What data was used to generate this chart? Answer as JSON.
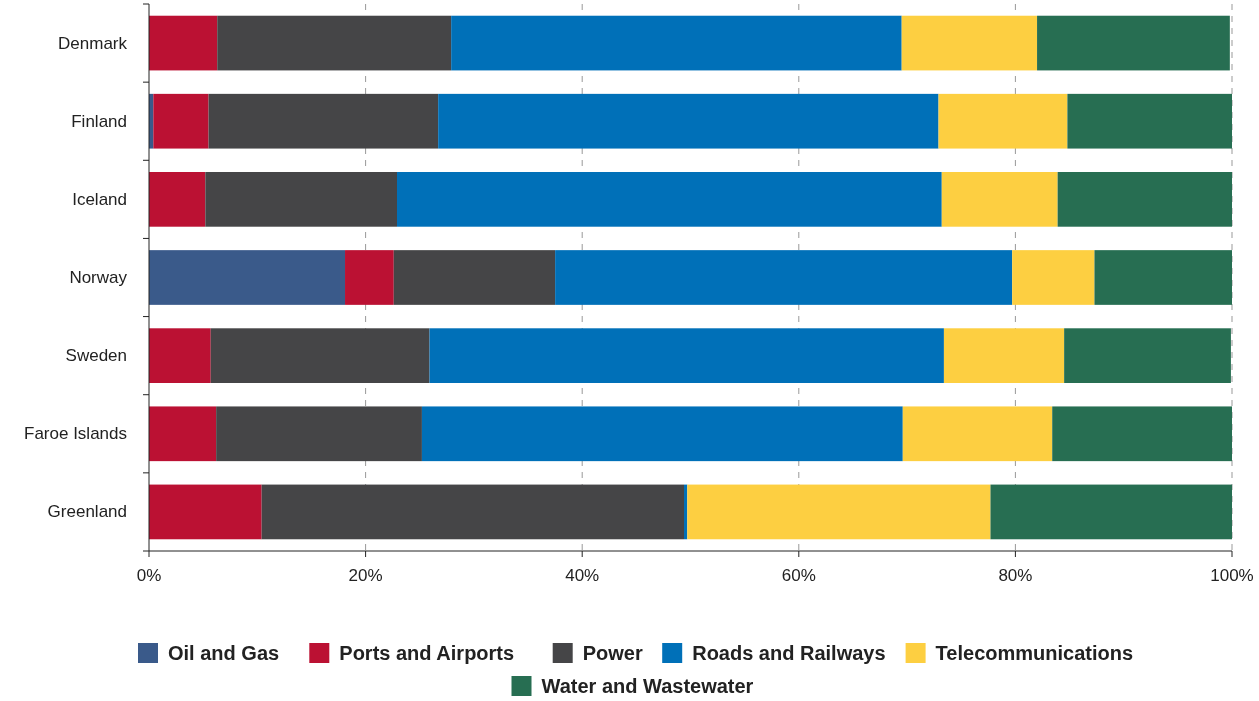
{
  "chart_data": {
    "type": "bar",
    "orientation": "horizontal",
    "stacked": true,
    "categories": [
      "Denmark",
      "Finland",
      "Iceland",
      "Norway",
      "Sweden",
      "Faroe Islands",
      "Greenland"
    ],
    "series": [
      {
        "name": "Oil and Gas",
        "color": "#3a5a8a",
        "values": [
          null,
          0.4,
          0,
          18.1,
          null,
          0,
          0
        ]
      },
      {
        "name": "Ports and Airports",
        "color": "#bb1133",
        "values": [
          6.3,
          5.1,
          5.2,
          4.5,
          5.7,
          6.2,
          10.4
        ]
      },
      {
        "name": "Power",
        "color": "#454547",
        "values": [
          21.6,
          21.2,
          17.7,
          14.9,
          20.2,
          19.0,
          39.0
        ]
      },
      {
        "name": "Roads and Railways",
        "color": "#0070b8",
        "values": [
          41.6,
          46.2,
          50.3,
          42.2,
          47.5,
          44.4,
          0.3
        ]
      },
      {
        "name": "Telecommunications",
        "color": "#fdcf41",
        "values": [
          12.5,
          11.9,
          10.7,
          7.6,
          11.1,
          13.8,
          28.0
        ]
      },
      {
        "name": "Water and Wastewater",
        "color": "#276e52",
        "values": [
          17.8,
          15.2,
          16.1,
          12.7,
          15.4,
          16.6,
          22.3
        ]
      }
    ],
    "xlim": [
      0,
      100
    ],
    "xticks": [
      {
        "value": 0,
        "label": "0%"
      },
      {
        "value": 20,
        "label": "20%"
      },
      {
        "value": 40,
        "label": "40%"
      },
      {
        "value": 60,
        "label": "60%"
      },
      {
        "value": 80,
        "label": "80%"
      },
      {
        "value": 100,
        "label": "100%"
      }
    ],
    "grid": "x",
    "legend": "bottom"
  }
}
